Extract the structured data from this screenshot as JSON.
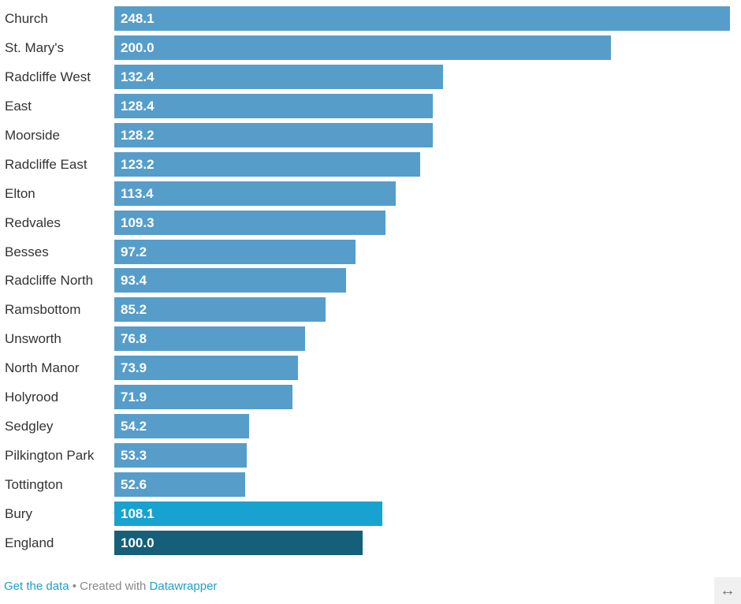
{
  "chart_data": {
    "type": "bar",
    "orientation": "horizontal",
    "categories": [
      "Church",
      "St. Mary's",
      "Radcliffe West",
      "East",
      "Moorside",
      "Radcliffe East",
      "Elton",
      "Redvales",
      "Besses",
      "Radcliffe North",
      "Ramsbottom",
      "Unsworth",
      "North Manor",
      "Holyrood",
      "Sedgley",
      "Pilkington Park",
      "Tottington",
      "Bury",
      "England"
    ],
    "values": [
      248.1,
      200.0,
      132.4,
      128.4,
      128.2,
      123.2,
      113.4,
      109.3,
      97.2,
      93.4,
      85.2,
      76.8,
      73.9,
      71.9,
      54.2,
      53.3,
      52.6,
      108.1,
      100.0
    ],
    "value_labels": [
      "248.1",
      "200.0",
      "132.4",
      "128.4",
      "128.2",
      "123.2",
      "113.4",
      "109.3",
      "97.2",
      "93.4",
      "85.2",
      "76.8",
      "73.9",
      "71.9",
      "54.2",
      "53.3",
      "52.6",
      "108.1",
      "100.0"
    ],
    "colors": {
      "default": "#569dca",
      "Bury": "#18a2cf",
      "England": "#155f78"
    },
    "xlim": [
      0,
      248.1
    ],
    "grid": false
  },
  "footer": {
    "get_data": "Get the data",
    "separator": " • Created with ",
    "datawrapper": "Datawrapper"
  },
  "expand_icon": "↔"
}
